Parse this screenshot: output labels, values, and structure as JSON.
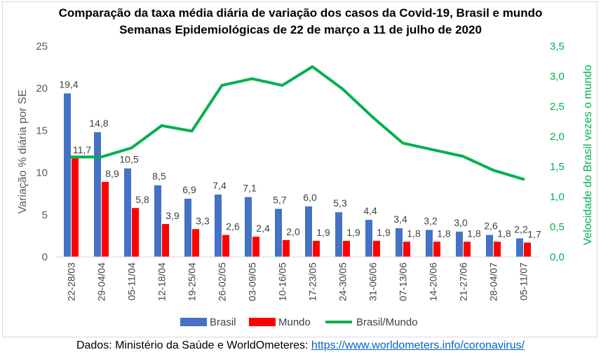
{
  "chart_data": {
    "type": "bar",
    "title": "Comparação da taxa média diária de variação dos casos da Covid-19, Brasil e mundo",
    "subtitle": "Semanas Epidemiológicas de 22 de março a 11 de julho de 2020",
    "categories": [
      "22-28/03",
      "29-04/04",
      "05-11/04",
      "12-18/04",
      "19-25/04",
      "26-02/05",
      "03-09/05",
      "10-16/05",
      "17-23/05",
      "24-30/05",
      "31-06/06",
      "07-13/06",
      "14-20/06",
      "21-27/06",
      "28-04/07",
      "05-11/07"
    ],
    "series": [
      {
        "name": "Brasil",
        "type": "bar",
        "axis": "left",
        "color": "#4472c4",
        "values": [
          19.4,
          14.8,
          10.5,
          8.5,
          6.9,
          7.4,
          7.1,
          5.7,
          6.0,
          5.3,
          4.4,
          3.4,
          3.2,
          3.0,
          2.6,
          2.2
        ],
        "labels": [
          "19,4",
          "14,8",
          "10,5",
          "8,5",
          "6,9",
          "7,4",
          "7,1",
          "5,7",
          "6,0",
          "5,3",
          "4,4",
          "3,4",
          "3,2",
          "3,0",
          "2,6",
          "2,2"
        ]
      },
      {
        "name": "Mundo",
        "type": "bar",
        "axis": "left",
        "color": "#ff0000",
        "values": [
          11.7,
          8.9,
          5.8,
          3.9,
          3.3,
          2.6,
          2.4,
          2.0,
          1.9,
          1.9,
          1.9,
          1.8,
          1.8,
          1.8,
          1.8,
          1.7
        ],
        "labels": [
          "11,7",
          "8,9",
          "5,8",
          "3,9",
          "3,3",
          "2,6",
          "2,4",
          "2,0",
          "1,9",
          "1,9",
          "1,9",
          "1,8",
          "1,8",
          "1,8",
          "1,8",
          "1,7"
        ]
      },
      {
        "name": "Brasil/Mundo",
        "type": "line",
        "axis": "right",
        "color": "#00b050",
        "values": [
          1.66,
          1.66,
          1.81,
          2.18,
          2.09,
          2.85,
          2.96,
          2.85,
          3.16,
          2.79,
          2.32,
          1.89,
          1.78,
          1.67,
          1.44,
          1.29
        ]
      }
    ],
    "ylabel": "Variação % diária por SE",
    "y2label": "Velocidade do Brasil vezes o mundo",
    "ylim": [
      0,
      25
    ],
    "y2lim": [
      0,
      3.5
    ],
    "yticks": [
      "0",
      "5",
      "10",
      "15",
      "20",
      "25"
    ],
    "y2ticks": [
      "0,0",
      "0,5",
      "1,0",
      "1,5",
      "2,0",
      "2,5",
      "3,0",
      "3,5"
    ],
    "grid": false,
    "legend": "bottom"
  },
  "source": {
    "prefix": "Dados: Ministério da Saúde e WorldOmeteres: ",
    "link": "https://www.worldometers.info/coronavirus/"
  }
}
